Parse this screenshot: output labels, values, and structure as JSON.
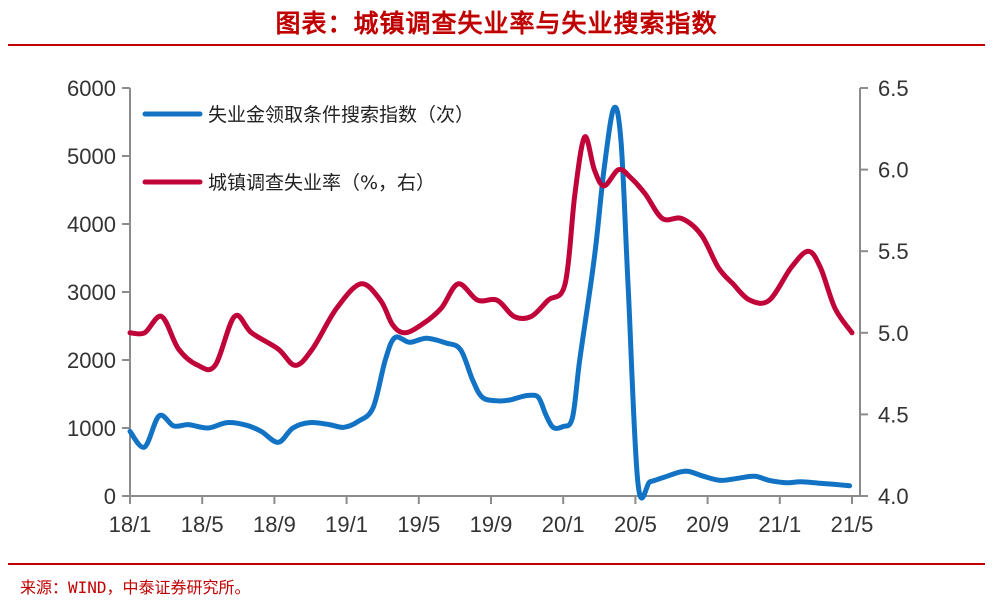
{
  "title": "图表：城镇调查失业率与失业搜索指数",
  "source": "来源：WIND，中泰证券研究所。",
  "chart_data": {
    "type": "line",
    "title": "图表：城镇调查失业率与失业搜索指数",
    "x_labels": [
      "18/1",
      "18/5",
      "18/9",
      "19/1",
      "19/5",
      "19/9",
      "20/1",
      "20/5",
      "20/9",
      "21/1",
      "21/5"
    ],
    "y_left": {
      "min": 0,
      "max": 6000,
      "ticks": [
        "0",
        "1000",
        "2000",
        "3000",
        "4000",
        "5000",
        "6000"
      ]
    },
    "y_right": {
      "min": 4.0,
      "max": 6.5,
      "ticks": [
        "4.0",
        "4.5",
        "5.0",
        "5.5",
        "6.0",
        "6.5"
      ]
    },
    "grid": false,
    "legend_position": "top-left",
    "series": [
      {
        "name": "失业金领取条件搜索指数（次）",
        "axis": "left",
        "color": "#1273C4",
        "points": [
          [
            0,
            950
          ],
          [
            0.6,
            720
          ],
          [
            1.2,
            1180
          ],
          [
            1.8,
            1030
          ],
          [
            2.4,
            1050
          ],
          [
            3.2,
            1000
          ],
          [
            4,
            1080
          ],
          [
            4.8,
            1040
          ],
          [
            5.4,
            950
          ],
          [
            6.1,
            790
          ],
          [
            6.7,
            1000
          ],
          [
            7.4,
            1080
          ],
          [
            8.2,
            1050
          ],
          [
            8.8,
            1010
          ],
          [
            9.4,
            1100
          ],
          [
            10,
            1300
          ],
          [
            10.5,
            2000
          ],
          [
            10.9,
            2330
          ],
          [
            11.5,
            2260
          ],
          [
            12.2,
            2320
          ],
          [
            13,
            2250
          ],
          [
            13.6,
            2150
          ],
          [
            14.1,
            1700
          ],
          [
            14.5,
            1450
          ],
          [
            15.1,
            1400
          ],
          [
            15.6,
            1410
          ],
          [
            16,
            1450
          ],
          [
            16.4,
            1480
          ],
          [
            16.8,
            1450
          ],
          [
            17.1,
            1200
          ],
          [
            17.4,
            1010
          ],
          [
            17.8,
            1020
          ],
          [
            18.2,
            1150
          ],
          [
            18.5,
            2000
          ],
          [
            19.1,
            3500
          ],
          [
            19.5,
            4800
          ],
          [
            19.9,
            5700
          ],
          [
            20.2,
            5200
          ],
          [
            20.5,
            3000
          ],
          [
            20.9,
            170
          ],
          [
            21.4,
            210
          ],
          [
            22,
            280
          ],
          [
            22.6,
            350
          ],
          [
            23,
            360
          ],
          [
            23.6,
            290
          ],
          [
            24.3,
            230
          ],
          [
            25,
            260
          ],
          [
            25.7,
            290
          ],
          [
            26.3,
            230
          ],
          [
            27,
            195
          ],
          [
            27.6,
            210
          ],
          [
            28.3,
            190
          ],
          [
            29,
            170
          ],
          [
            29.6,
            150
          ]
        ]
      },
      {
        "name": "城镇调查失业率（%，右）",
        "axis": "right",
        "color": "#C0043A",
        "points": [
          [
            0,
            5.0
          ],
          [
            0.6,
            5.0
          ],
          [
            1.3,
            5.1
          ],
          [
            2,
            4.9
          ],
          [
            2.8,
            4.8
          ],
          [
            3.5,
            4.8
          ],
          [
            4.3,
            5.1
          ],
          [
            5,
            5.0
          ],
          [
            6.1,
            4.9
          ],
          [
            6.8,
            4.8
          ],
          [
            7.5,
            4.9
          ],
          [
            8.5,
            5.15
          ],
          [
            9.5,
            5.3
          ],
          [
            10.3,
            5.2
          ],
          [
            10.8,
            5.05
          ],
          [
            11.3,
            5.0
          ],
          [
            12,
            5.05
          ],
          [
            12.8,
            5.15
          ],
          [
            13.5,
            5.3
          ],
          [
            14.3,
            5.2
          ],
          [
            15.1,
            5.2
          ],
          [
            15.8,
            5.1
          ],
          [
            16.5,
            5.1
          ],
          [
            17.2,
            5.2
          ],
          [
            17.9,
            5.3
          ],
          [
            18.3,
            5.85
          ],
          [
            18.7,
            6.2
          ],
          [
            19.1,
            6.0
          ],
          [
            19.5,
            5.9
          ],
          [
            20.1,
            6.0
          ],
          [
            20.6,
            5.95
          ],
          [
            21.2,
            5.85
          ],
          [
            21.9,
            5.7
          ],
          [
            22.7,
            5.7
          ],
          [
            23.5,
            5.6
          ],
          [
            24.2,
            5.4
          ],
          [
            24.8,
            5.3
          ],
          [
            25.5,
            5.2
          ],
          [
            26.3,
            5.2
          ],
          [
            27.2,
            5.4
          ],
          [
            27.9,
            5.5
          ],
          [
            28.4,
            5.4
          ],
          [
            29,
            5.15
          ],
          [
            29.7,
            5.0
          ]
        ]
      }
    ]
  }
}
